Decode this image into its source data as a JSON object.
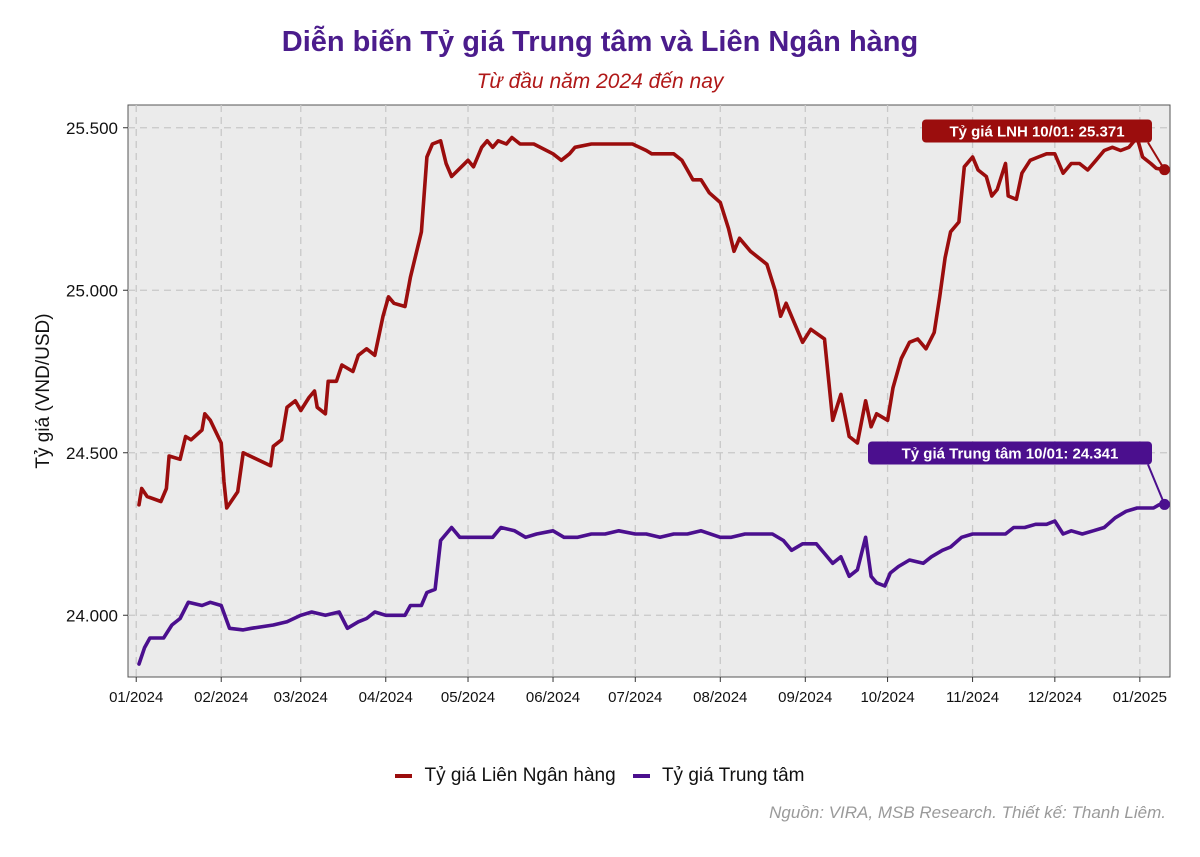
{
  "title": "Diễn biến Tỷ giá Trung tâm và Liên Ngân hàng",
  "subtitle": "Từ đầu năm 2024 đến nay",
  "source": "Nguồn: VIRA, MSB Research. Thiết kế: Thanh Liêm.",
  "colors": {
    "lnh": "#9b0d0d",
    "central": "#4b0f8e",
    "panel": "#ebebeb",
    "grid": "#c8c8c8"
  },
  "chart_data": {
    "type": "line",
    "title": "Diễn biến Tỷ giá Trung tâm và Liên Ngân hàng",
    "subtitle": "Từ đầu năm 2024 đến nay",
    "xlabel": "",
    "ylabel": "Tỷ giá (VND/USD)",
    "x_range": [
      "2023-12-29",
      "2025-01-12"
    ],
    "ylim": [
      23810,
      25570
    ],
    "y_ticks": [
      24000,
      24500,
      25000,
      25500
    ],
    "y_tick_labels": [
      "24.000",
      "24.500",
      "25.000",
      "25.500"
    ],
    "x_ticks": [
      "2024-01-01",
      "2024-02-01",
      "2024-03-01",
      "2024-04-01",
      "2024-05-01",
      "2024-06-01",
      "2024-07-01",
      "2024-08-01",
      "2024-09-01",
      "2024-10-01",
      "2024-11-01",
      "2024-12-01",
      "2025-01-01"
    ],
    "x_tick_labels": [
      "01/2024",
      "02/2024",
      "03/2024",
      "04/2024",
      "05/2024",
      "06/2024",
      "07/2024",
      "08/2024",
      "09/2024",
      "10/2024",
      "11/2024",
      "12/2024",
      "01/2025"
    ],
    "grid": true,
    "legend_position": "bottom",
    "series": [
      {
        "name": "Tỷ giá Liên Ngân hàng",
        "color": "#9b0d0d",
        "points": [
          [
            "2024-01-02",
            24340
          ],
          [
            "2024-01-03",
            24390
          ],
          [
            "2024-01-05",
            24365
          ],
          [
            "2024-01-10",
            24350
          ],
          [
            "2024-01-12",
            24390
          ],
          [
            "2024-01-13",
            24490
          ],
          [
            "2024-01-17",
            24480
          ],
          [
            "2024-01-19",
            24550
          ],
          [
            "2024-01-21",
            24540
          ],
          [
            "2024-01-25",
            24570
          ],
          [
            "2024-01-26",
            24620
          ],
          [
            "2024-01-28",
            24600
          ],
          [
            "2024-02-01",
            24530
          ],
          [
            "2024-02-02",
            24410
          ],
          [
            "2024-02-03",
            24330
          ],
          [
            "2024-02-07",
            24380
          ],
          [
            "2024-02-09",
            24500
          ],
          [
            "2024-02-19",
            24460
          ],
          [
            "2024-02-20",
            24520
          ],
          [
            "2024-02-23",
            24540
          ],
          [
            "2024-02-25",
            24640
          ],
          [
            "2024-02-28",
            24660
          ],
          [
            "2024-03-01",
            24630
          ],
          [
            "2024-03-04",
            24670
          ],
          [
            "2024-03-06",
            24690
          ],
          [
            "2024-03-07",
            24640
          ],
          [
            "2024-03-10",
            24620
          ],
          [
            "2024-03-11",
            24720
          ],
          [
            "2024-03-14",
            24720
          ],
          [
            "2024-03-16",
            24770
          ],
          [
            "2024-03-20",
            24750
          ],
          [
            "2024-03-22",
            24800
          ],
          [
            "2024-03-25",
            24820
          ],
          [
            "2024-03-28",
            24800
          ],
          [
            "2024-03-31",
            24920
          ],
          [
            "2024-04-02",
            24980
          ],
          [
            "2024-04-04",
            24960
          ],
          [
            "2024-04-08",
            24950
          ],
          [
            "2024-04-10",
            25040
          ],
          [
            "2024-04-14",
            25180
          ],
          [
            "2024-04-16",
            25410
          ],
          [
            "2024-04-18",
            25450
          ],
          [
            "2024-04-21",
            25460
          ],
          [
            "2024-04-23",
            25390
          ],
          [
            "2024-04-25",
            25350
          ],
          [
            "2024-05-01",
            25400
          ],
          [
            "2024-05-03",
            25380
          ],
          [
            "2024-05-06",
            25440
          ],
          [
            "2024-05-08",
            25460
          ],
          [
            "2024-05-10",
            25440
          ],
          [
            "2024-05-12",
            25460
          ],
          [
            "2024-05-15",
            25450
          ],
          [
            "2024-05-17",
            25470
          ],
          [
            "2024-05-20",
            25450
          ],
          [
            "2024-05-25",
            25450
          ],
          [
            "2024-06-01",
            25420
          ],
          [
            "2024-06-04",
            25400
          ],
          [
            "2024-06-07",
            25420
          ],
          [
            "2024-06-09",
            25440
          ],
          [
            "2024-06-15",
            25450
          ],
          [
            "2024-06-20",
            25450
          ],
          [
            "2024-06-25",
            25450
          ],
          [
            "2024-06-30",
            25450
          ],
          [
            "2024-07-05",
            25430
          ],
          [
            "2024-07-07",
            25420
          ],
          [
            "2024-07-10",
            25420
          ],
          [
            "2024-07-15",
            25420
          ],
          [
            "2024-07-18",
            25400
          ],
          [
            "2024-07-20",
            25370
          ],
          [
            "2024-07-22",
            25340
          ],
          [
            "2024-07-25",
            25340
          ],
          [
            "2024-07-28",
            25300
          ],
          [
            "2024-08-01",
            25270
          ],
          [
            "2024-08-04",
            25190
          ],
          [
            "2024-08-06",
            25120
          ],
          [
            "2024-08-08",
            25160
          ],
          [
            "2024-08-12",
            25120
          ],
          [
            "2024-08-15",
            25100
          ],
          [
            "2024-08-18",
            25080
          ],
          [
            "2024-08-21",
            25000
          ],
          [
            "2024-08-23",
            24920
          ],
          [
            "2024-08-25",
            24960
          ],
          [
            "2024-08-28",
            24900
          ],
          [
            "2024-08-31",
            24840
          ],
          [
            "2024-09-03",
            24880
          ],
          [
            "2024-09-08",
            24850
          ],
          [
            "2024-09-11",
            24600
          ],
          [
            "2024-09-14",
            24680
          ],
          [
            "2024-09-17",
            24550
          ],
          [
            "2024-09-20",
            24530
          ],
          [
            "2024-09-23",
            24660
          ],
          [
            "2024-09-25",
            24580
          ],
          [
            "2024-09-27",
            24620
          ],
          [
            "2024-10-01",
            24600
          ],
          [
            "2024-10-03",
            24700
          ],
          [
            "2024-10-06",
            24790
          ],
          [
            "2024-10-09",
            24840
          ],
          [
            "2024-10-12",
            24850
          ],
          [
            "2024-10-15",
            24820
          ],
          [
            "2024-10-18",
            24870
          ],
          [
            "2024-10-20",
            24980
          ],
          [
            "2024-10-22",
            25100
          ],
          [
            "2024-10-24",
            25180
          ],
          [
            "2024-10-27",
            25210
          ],
          [
            "2024-10-29",
            25380
          ],
          [
            "2024-11-01",
            25410
          ],
          [
            "2024-11-03",
            25370
          ],
          [
            "2024-11-06",
            25350
          ],
          [
            "2024-11-08",
            25290
          ],
          [
            "2024-11-10",
            25310
          ],
          [
            "2024-11-13",
            25390
          ],
          [
            "2024-11-14",
            25290
          ],
          [
            "2024-11-17",
            25280
          ],
          [
            "2024-11-19",
            25360
          ],
          [
            "2024-11-22",
            25400
          ],
          [
            "2024-11-25",
            25410
          ],
          [
            "2024-11-28",
            25420
          ],
          [
            "2024-12-01",
            25420
          ],
          [
            "2024-12-04",
            25360
          ],
          [
            "2024-12-07",
            25390
          ],
          [
            "2024-12-10",
            25390
          ],
          [
            "2024-12-13",
            25370
          ],
          [
            "2024-12-16",
            25400
          ],
          [
            "2024-12-19",
            25430
          ],
          [
            "2024-12-22",
            25440
          ],
          [
            "2024-12-25",
            25430
          ],
          [
            "2024-12-28",
            25440
          ],
          [
            "2024-12-31",
            25470
          ],
          [
            "2025-01-02",
            25410
          ],
          [
            "2025-01-05",
            25390
          ],
          [
            "2025-01-07",
            25375
          ],
          [
            "2025-01-10",
            25371
          ]
        ],
        "annotation": {
          "text": "Tỷ giá LNH 10/01:  25.371",
          "x": "2025-01-10",
          "y": 25371
        }
      },
      {
        "name": "Tỷ giá Trung tâm",
        "color": "#4b0f8e",
        "points": [
          [
            "2024-01-02",
            23850
          ],
          [
            "2024-01-04",
            23900
          ],
          [
            "2024-01-06",
            23930
          ],
          [
            "2024-01-11",
            23930
          ],
          [
            "2024-01-14",
            23970
          ],
          [
            "2024-01-17",
            23990
          ],
          [
            "2024-01-20",
            24040
          ],
          [
            "2024-01-25",
            24030
          ],
          [
            "2024-01-28",
            24040
          ],
          [
            "2024-02-01",
            24030
          ],
          [
            "2024-02-04",
            23960
          ],
          [
            "2024-02-09",
            23955
          ],
          [
            "2024-02-12",
            23960
          ],
          [
            "2024-02-20",
            23970
          ],
          [
            "2024-02-25",
            23980
          ],
          [
            "2024-03-01",
            24000
          ],
          [
            "2024-03-05",
            24010
          ],
          [
            "2024-03-10",
            24000
          ],
          [
            "2024-03-15",
            24010
          ],
          [
            "2024-03-18",
            23960
          ],
          [
            "2024-03-22",
            23980
          ],
          [
            "2024-03-25",
            23990
          ],
          [
            "2024-03-28",
            24010
          ],
          [
            "2024-04-01",
            24000
          ],
          [
            "2024-04-08",
            24000
          ],
          [
            "2024-04-10",
            24030
          ],
          [
            "2024-04-14",
            24030
          ],
          [
            "2024-04-16",
            24070
          ],
          [
            "2024-04-19",
            24080
          ],
          [
            "2024-04-21",
            24230
          ],
          [
            "2024-04-25",
            24270
          ],
          [
            "2024-04-28",
            24240
          ],
          [
            "2024-05-05",
            24240
          ],
          [
            "2024-05-10",
            24240
          ],
          [
            "2024-05-13",
            24270
          ],
          [
            "2024-05-18",
            24260
          ],
          [
            "2024-05-22",
            24240
          ],
          [
            "2024-05-26",
            24250
          ],
          [
            "2024-06-01",
            24260
          ],
          [
            "2024-06-05",
            24240
          ],
          [
            "2024-06-10",
            24240
          ],
          [
            "2024-06-15",
            24250
          ],
          [
            "2024-06-20",
            24250
          ],
          [
            "2024-06-25",
            24260
          ],
          [
            "2024-07-01",
            24250
          ],
          [
            "2024-07-05",
            24250
          ],
          [
            "2024-07-10",
            24240
          ],
          [
            "2024-07-15",
            24250
          ],
          [
            "2024-07-20",
            24250
          ],
          [
            "2024-07-25",
            24260
          ],
          [
            "2024-08-01",
            24240
          ],
          [
            "2024-08-05",
            24240
          ],
          [
            "2024-08-10",
            24250
          ],
          [
            "2024-08-15",
            24250
          ],
          [
            "2024-08-20",
            24250
          ],
          [
            "2024-08-24",
            24230
          ],
          [
            "2024-08-27",
            24200
          ],
          [
            "2024-08-31",
            24220
          ],
          [
            "2024-09-05",
            24220
          ],
          [
            "2024-09-08",
            24190
          ],
          [
            "2024-09-11",
            24160
          ],
          [
            "2024-09-14",
            24180
          ],
          [
            "2024-09-17",
            24120
          ],
          [
            "2024-09-20",
            24140
          ],
          [
            "2024-09-23",
            24240
          ],
          [
            "2024-09-25",
            24120
          ],
          [
            "2024-09-27",
            24100
          ],
          [
            "2024-09-30",
            24090
          ],
          [
            "2024-10-02",
            24130
          ],
          [
            "2024-10-05",
            24150
          ],
          [
            "2024-10-09",
            24170
          ],
          [
            "2024-10-14",
            24160
          ],
          [
            "2024-10-17",
            24180
          ],
          [
            "2024-10-21",
            24200
          ],
          [
            "2024-10-24",
            24210
          ],
          [
            "2024-10-28",
            24240
          ],
          [
            "2024-11-01",
            24250
          ],
          [
            "2024-11-05",
            24250
          ],
          [
            "2024-11-09",
            24250
          ],
          [
            "2024-11-13",
            24250
          ],
          [
            "2024-11-16",
            24270
          ],
          [
            "2024-11-20",
            24270
          ],
          [
            "2024-11-24",
            24280
          ],
          [
            "2024-11-28",
            24280
          ],
          [
            "2024-12-01",
            24290
          ],
          [
            "2024-12-04",
            24250
          ],
          [
            "2024-12-07",
            24260
          ],
          [
            "2024-12-11",
            24250
          ],
          [
            "2024-12-15",
            24260
          ],
          [
            "2024-12-19",
            24270
          ],
          [
            "2024-12-23",
            24300
          ],
          [
            "2024-12-27",
            24320
          ],
          [
            "2024-12-31",
            24330
          ],
          [
            "2025-01-03",
            24330
          ],
          [
            "2025-01-06",
            24330
          ],
          [
            "2025-01-08",
            24340
          ],
          [
            "2025-01-10",
            24341
          ]
        ],
        "annotation": {
          "text": "Tỷ giá Trung tâm 10/01:  24.341",
          "x": "2025-01-10",
          "y": 24341
        }
      }
    ]
  },
  "legend": {
    "items": [
      {
        "label": "Tỷ giá Liên Ngân hàng",
        "color": "#9b0d0d"
      },
      {
        "label": "Tỷ giá Trung tâm",
        "color": "#4b0f8e"
      }
    ]
  }
}
